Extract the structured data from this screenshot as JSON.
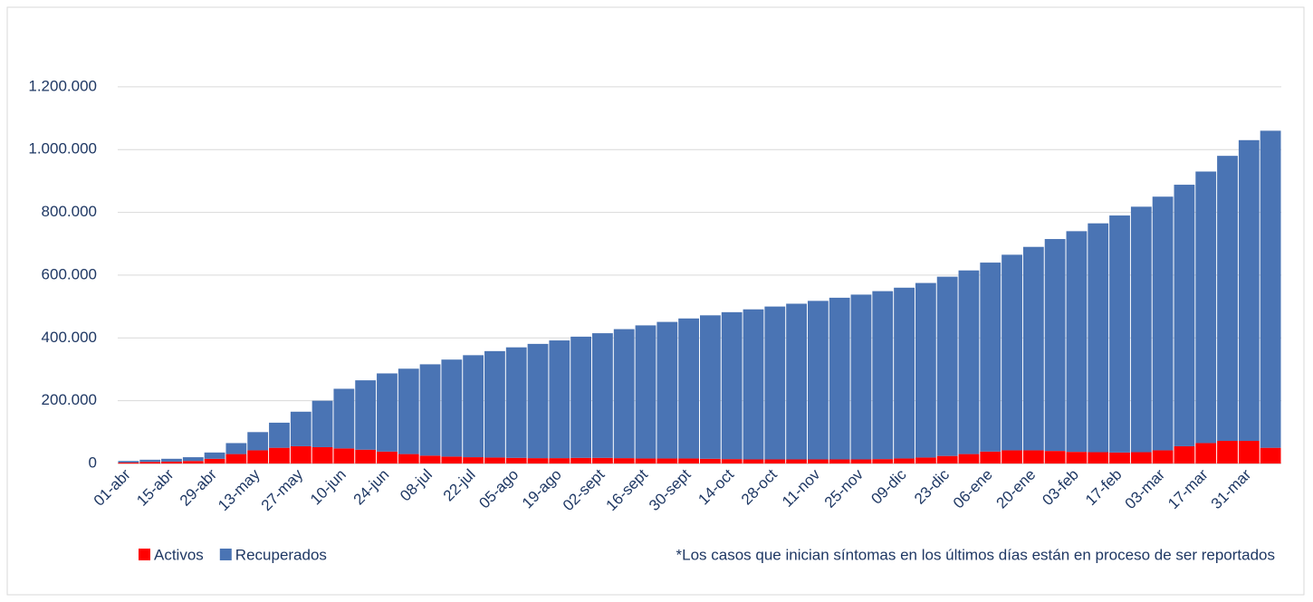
{
  "chart_data": {
    "type": "stacked_bar",
    "categories": [
      "01-abr",
      null,
      "15-abr",
      null,
      "29-abr",
      null,
      "13-may",
      null,
      "27-may",
      null,
      "10-jun",
      null,
      "24-jun",
      null,
      "08-jul",
      null,
      "22-jul",
      null,
      "05-ago",
      null,
      "19-ago",
      null,
      "02-sept",
      null,
      "16-sept",
      null,
      "30-sept",
      null,
      "14-oct",
      null,
      "28-oct",
      null,
      "11-nov",
      null,
      "25-nov",
      null,
      "09-dic",
      null,
      "23-dic",
      null,
      "06-ene",
      null,
      "20-ene",
      null,
      "03-feb",
      null,
      "17-feb",
      null,
      "03-mar",
      null,
      "17-mar",
      null,
      "31-mar",
      null
    ],
    "series": [
      {
        "name": "Activos",
        "color": "#ff0000",
        "values": [
          3000,
          5000,
          6000,
          8000,
          15000,
          30000,
          42000,
          50000,
          55000,
          52000,
          48000,
          44000,
          38000,
          30000,
          25000,
          22000,
          20000,
          19000,
          18000,
          17000,
          17000,
          18000,
          18000,
          17000,
          16000,
          16000,
          16000,
          15000,
          14000,
          13000,
          13000,
          13000,
          13000,
          13000,
          13000,
          14000,
          16000,
          19000,
          24000,
          30000,
          38000,
          42000,
          42000,
          40000,
          37000,
          36000,
          35000,
          36000,
          42000,
          55000,
          65000,
          72000,
          72000,
          50000
        ]
      },
      {
        "name": "Recuperados",
        "color": "#4a74b4",
        "values": [
          5000,
          7000,
          9000,
          12000,
          20000,
          35000,
          58000,
          80000,
          110000,
          148000,
          190000,
          221000,
          249000,
          272000,
          291000,
          309000,
          325000,
          339000,
          352000,
          364000,
          375000,
          386000,
          397000,
          411000,
          424000,
          435000,
          446000,
          457000,
          468000,
          478000,
          487000,
          496000,
          505000,
          515000,
          525000,
          535000,
          544000,
          556000,
          571000,
          585000,
          602000,
          623000,
          648000,
          675000,
          703000,
          729000,
          755000,
          782000,
          808000,
          833000,
          865000,
          908000,
          958000,
          1010000
        ]
      }
    ],
    "ylim": [
      0,
      1400000
    ],
    "yticks": [
      {
        "value": 0,
        "label": "0"
      },
      {
        "value": 200000,
        "label": "200.000"
      },
      {
        "value": 400000,
        "label": "400.000"
      },
      {
        "value": 600000,
        "label": "600.000"
      },
      {
        "value": 800000,
        "label": "800.000"
      },
      {
        "value": 1000000,
        "label": "1.000.000"
      },
      {
        "value": 1200000,
        "label": "1.200.000"
      }
    ],
    "grid": true,
    "legend": "bottom-left",
    "annotation": "*Los casos que inician síntomas en los últimos días están en proceso de ser reportados"
  }
}
